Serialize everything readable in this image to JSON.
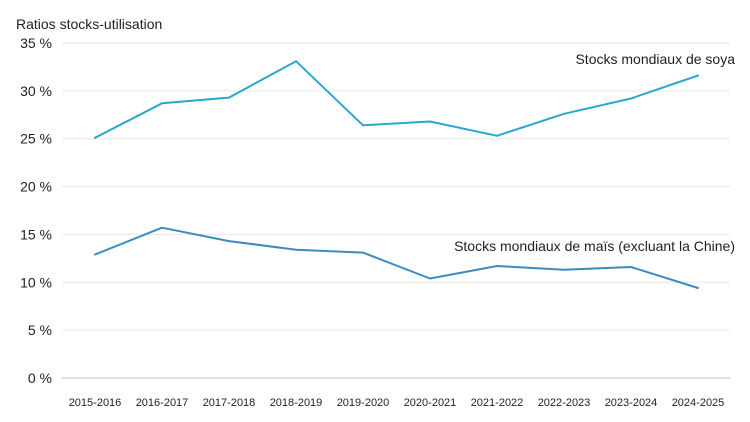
{
  "chart_data": {
    "type": "line",
    "ylabel": "Ratios stocks-utilisation",
    "ylim": [
      0,
      35
    ],
    "yticks": [
      0,
      5,
      10,
      15,
      20,
      25,
      30,
      35
    ],
    "ytick_labels": [
      "0 %",
      "5 %",
      "10 %",
      "15 %",
      "20 %",
      "25 %",
      "30 %",
      "35 %"
    ],
    "categories": [
      "2015-2016",
      "2016-2017",
      "2017-2018",
      "2018-2019",
      "2019-2020",
      "2020-2021",
      "2021-2022",
      "2022-2023",
      "2023-2024",
      "2024-2025"
    ],
    "grid": true,
    "legend": "none",
    "series": [
      {
        "name": "Stocks mondiaux de soya",
        "color": "#2aa7cf",
        "values": [
          25.1,
          28.7,
          29.3,
          33.1,
          26.4,
          26.8,
          25.3,
          27.6,
          29.2,
          31.6
        ]
      },
      {
        "name": "Stocks mondiaux de maïs (excluant la Chine)",
        "color": "#3c8bbf",
        "values": [
          12.9,
          15.7,
          14.3,
          13.4,
          13.1,
          10.4,
          11.7,
          11.3,
          11.6,
          9.4
        ]
      }
    ]
  }
}
